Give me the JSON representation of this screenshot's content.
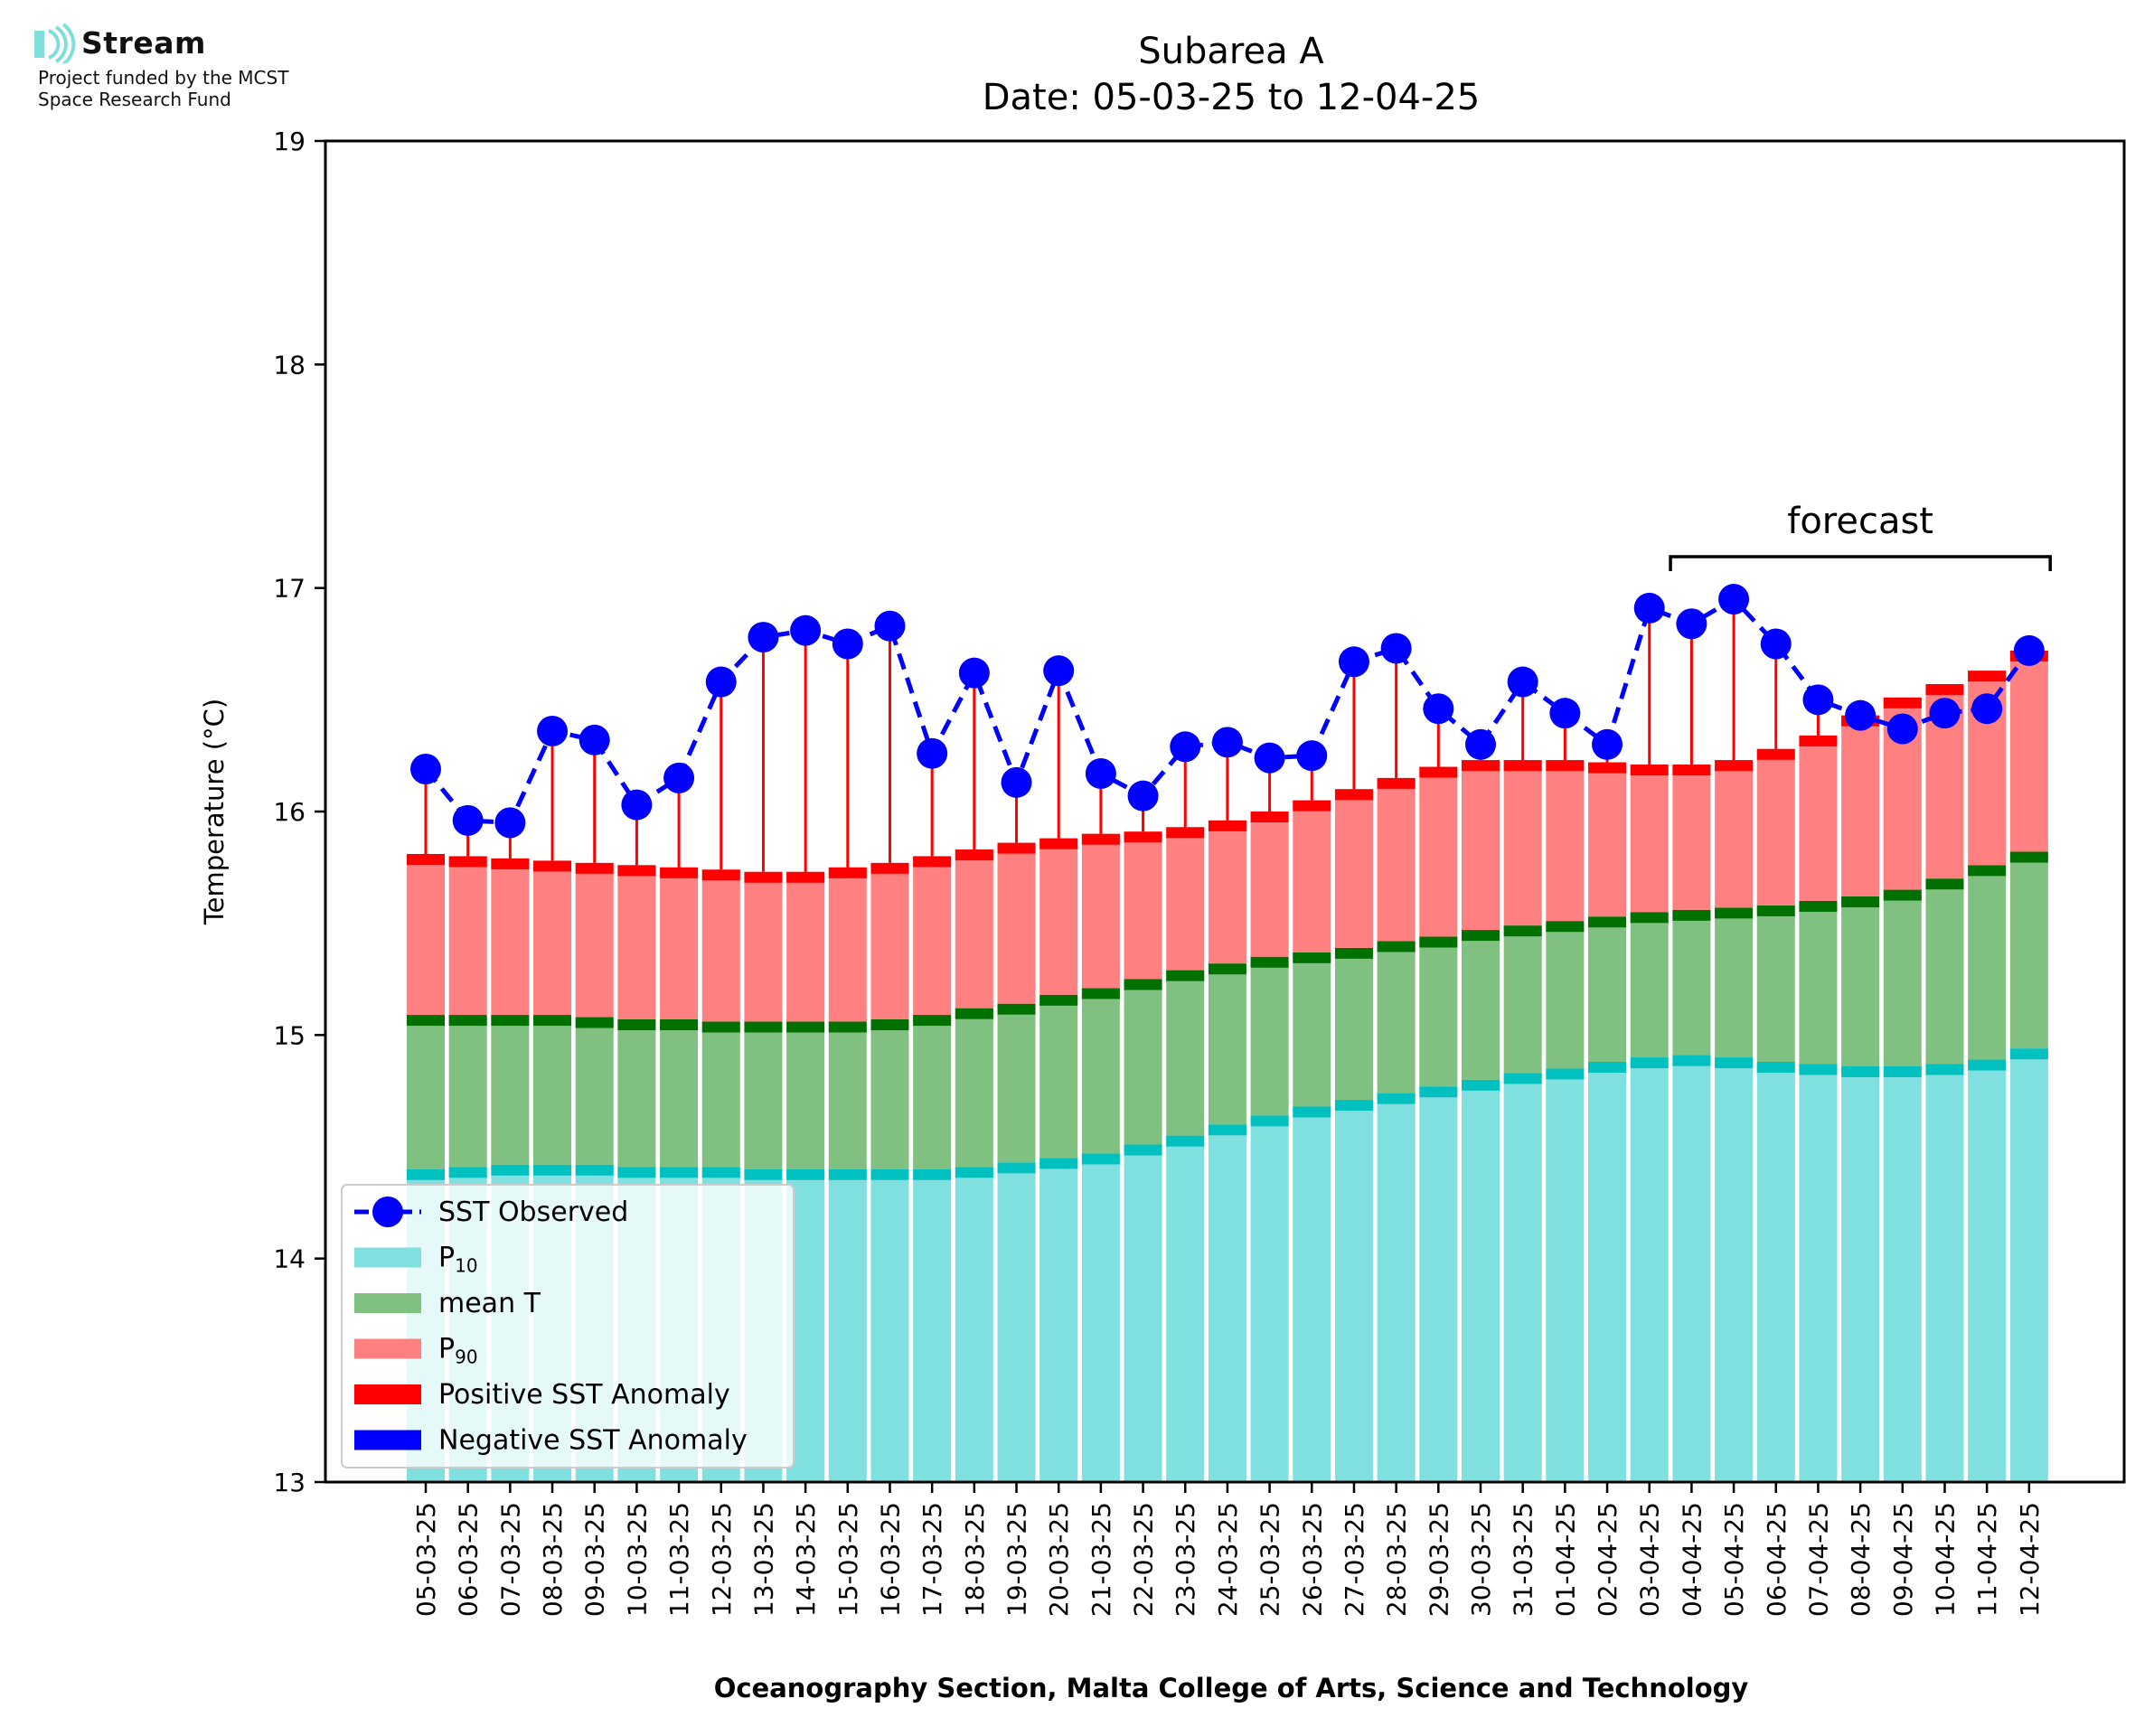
{
  "logo": {
    "name": "Stream",
    "line1": "Project funded by the MCST",
    "line2": "Space Research Fund",
    "color": "#7fdedb"
  },
  "chart_data": {
    "type": "bar",
    "title": "Subarea A",
    "subtitle": "Date: 05-03-25 to 12-04-25",
    "ylabel": "Temperature (°C)",
    "xlabel": "Oceanography Section, Malta College of Arts, Science and Technology",
    "ylim": [
      13,
      19
    ],
    "yticks": [
      13,
      14,
      15,
      16,
      17,
      18,
      19
    ],
    "forecast_label": "forecast",
    "forecast_range": [
      "04-04-25",
      "12-04-25"
    ],
    "legend_position": "lower left",
    "categories": [
      "05-03-25",
      "06-03-25",
      "07-03-25",
      "08-03-25",
      "09-03-25",
      "10-03-25",
      "11-03-25",
      "12-03-25",
      "13-03-25",
      "14-03-25",
      "15-03-25",
      "16-03-25",
      "17-03-25",
      "18-03-25",
      "19-03-25",
      "20-03-25",
      "21-03-25",
      "22-03-25",
      "23-03-25",
      "24-03-25",
      "25-03-25",
      "26-03-25",
      "27-03-25",
      "28-03-25",
      "29-03-25",
      "30-03-25",
      "31-03-25",
      "01-04-25",
      "02-04-25",
      "03-04-25",
      "04-04-25",
      "05-04-25",
      "06-04-25",
      "07-04-25",
      "08-04-25",
      "09-04-25",
      "10-04-25",
      "11-04-25",
      "12-04-25"
    ],
    "series": [
      {
        "name": "SST Observed",
        "color": "#0000ff",
        "values": [
          16.19,
          15.96,
          15.95,
          16.36,
          16.32,
          16.03,
          16.15,
          16.58,
          16.78,
          16.81,
          16.75,
          16.83,
          16.26,
          16.62,
          16.13,
          16.63,
          16.17,
          16.07,
          16.29,
          16.31,
          16.24,
          16.25,
          16.67,
          16.73,
          16.46,
          16.3,
          16.58,
          16.44,
          16.3,
          16.91,
          16.84,
          16.95,
          16.75,
          16.5,
          16.43,
          16.37,
          16.44,
          16.46,
          16.72
        ]
      },
      {
        "name": "P10",
        "color": "#80dfdf",
        "values": [
          14.4,
          14.41,
          14.42,
          14.42,
          14.42,
          14.41,
          14.41,
          14.41,
          14.4,
          14.4,
          14.4,
          14.4,
          14.4,
          14.41,
          14.43,
          14.45,
          14.47,
          14.51,
          14.55,
          14.6,
          14.64,
          14.68,
          14.71,
          14.74,
          14.77,
          14.8,
          14.83,
          14.85,
          14.88,
          14.9,
          14.91,
          14.9,
          14.88,
          14.87,
          14.86,
          14.86,
          14.87,
          14.89,
          14.94
        ]
      },
      {
        "name": "mean T",
        "color": "#80c080",
        "values": [
          15.09,
          15.09,
          15.09,
          15.09,
          15.08,
          15.07,
          15.07,
          15.06,
          15.06,
          15.06,
          15.06,
          15.07,
          15.09,
          15.12,
          15.14,
          15.18,
          15.21,
          15.25,
          15.29,
          15.32,
          15.35,
          15.37,
          15.39,
          15.42,
          15.44,
          15.47,
          15.49,
          15.51,
          15.53,
          15.55,
          15.56,
          15.57,
          15.58,
          15.6,
          15.62,
          15.65,
          15.7,
          15.76,
          15.82
        ]
      },
      {
        "name": "P90",
        "color": "#ff8080",
        "values": [
          15.81,
          15.8,
          15.79,
          15.78,
          15.77,
          15.76,
          15.75,
          15.74,
          15.73,
          15.73,
          15.75,
          15.77,
          15.8,
          15.83,
          15.86,
          15.88,
          15.9,
          15.91,
          15.93,
          15.96,
          16.0,
          16.05,
          16.1,
          16.15,
          16.2,
          16.23,
          16.23,
          16.23,
          16.22,
          16.21,
          16.21,
          16.23,
          16.28,
          16.34,
          16.43,
          16.51,
          16.57,
          16.63,
          16.72
        ]
      }
    ],
    "legend": [
      {
        "label": "SST Observed",
        "kind": "line-marker",
        "color": "#0000ff"
      },
      {
        "label": "P",
        "sub": "10",
        "kind": "patch",
        "color": "#80dfdf"
      },
      {
        "label": "mean T",
        "kind": "patch",
        "color": "#80c080"
      },
      {
        "label": "P",
        "sub": "90",
        "kind": "patch",
        "color": "#ff8080"
      },
      {
        "label": "Positive SST Anomaly",
        "kind": "patch",
        "color": "#ff0000"
      },
      {
        "label": "Negative SST Anomaly",
        "kind": "patch",
        "color": "#0000ff"
      }
    ],
    "band_colors": {
      "p10_edge": "#00c0c0",
      "mean_edge": "#007000",
      "p90_edge": "#ff0000",
      "pos_anomaly": "#ff0000"
    }
  }
}
